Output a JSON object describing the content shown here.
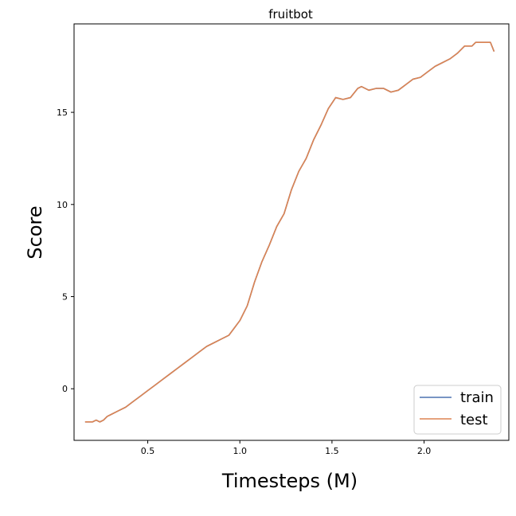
{
  "chart_data": {
    "type": "line",
    "title": "fruitbot",
    "xlabel": "Timesteps (M)",
    "ylabel": "Score",
    "xlim": [
      0.1,
      2.46
    ],
    "ylim": [
      -2.8,
      19.8
    ],
    "xticks": [
      0.5,
      1.0,
      1.5,
      2.0
    ],
    "xtick_labels": [
      "0.5",
      "1.0",
      "1.5",
      "2.0"
    ],
    "yticks": [
      0,
      5,
      10,
      15
    ],
    "ytick_labels": [
      "0",
      "5",
      "10",
      "15"
    ],
    "grid": false,
    "legend_position": "bottom-right",
    "series": [
      {
        "name": "train",
        "color": "#4c72b0",
        "x": [
          0.16,
          0.2,
          0.22,
          0.24,
          0.26,
          0.28,
          0.3,
          0.34,
          0.38,
          0.42,
          0.46,
          0.5,
          0.54,
          0.58,
          0.62,
          0.66,
          0.7,
          0.74,
          0.78,
          0.82,
          0.86,
          0.9,
          0.94,
          0.97,
          1.0,
          1.04,
          1.08,
          1.12,
          1.16,
          1.2,
          1.24,
          1.28,
          1.32,
          1.36,
          1.4,
          1.44,
          1.48,
          1.52,
          1.56,
          1.6,
          1.64,
          1.66,
          1.7,
          1.74,
          1.78,
          1.82,
          1.86,
          1.9,
          1.94,
          1.98,
          2.02,
          2.06,
          2.1,
          2.14,
          2.18,
          2.22,
          2.26,
          2.28,
          2.32,
          2.36,
          2.38
        ],
        "y": [
          -1.8,
          -1.8,
          -1.7,
          -1.8,
          -1.7,
          -1.5,
          -1.4,
          -1.2,
          -1.0,
          -0.7,
          -0.4,
          -0.1,
          0.2,
          0.5,
          0.8,
          1.1,
          1.4,
          1.7,
          2.0,
          2.3,
          2.5,
          2.7,
          2.9,
          3.3,
          3.7,
          4.5,
          5.8,
          6.9,
          7.8,
          8.8,
          9.5,
          10.8,
          11.8,
          12.5,
          13.5,
          14.3,
          15.2,
          15.8,
          15.7,
          15.8,
          16.3,
          16.4,
          16.2,
          16.3,
          16.3,
          16.1,
          16.2,
          16.5,
          16.8,
          16.9,
          17.2,
          17.5,
          17.7,
          17.9,
          18.2,
          18.6,
          18.6,
          18.8,
          18.8,
          18.8,
          18.3
        ]
      },
      {
        "name": "test",
        "color": "#dd8452",
        "x": [
          0.16,
          0.2,
          0.22,
          0.24,
          0.26,
          0.28,
          0.3,
          0.34,
          0.38,
          0.42,
          0.46,
          0.5,
          0.54,
          0.58,
          0.62,
          0.66,
          0.7,
          0.74,
          0.78,
          0.82,
          0.86,
          0.9,
          0.94,
          0.97,
          1.0,
          1.04,
          1.08,
          1.12,
          1.16,
          1.2,
          1.24,
          1.28,
          1.32,
          1.36,
          1.4,
          1.44,
          1.48,
          1.52,
          1.56,
          1.6,
          1.64,
          1.66,
          1.7,
          1.74,
          1.78,
          1.82,
          1.86,
          1.9,
          1.94,
          1.98,
          2.02,
          2.06,
          2.1,
          2.14,
          2.18,
          2.22,
          2.26,
          2.28,
          2.32,
          2.36,
          2.38
        ],
        "y": [
          -1.8,
          -1.8,
          -1.7,
          -1.8,
          -1.7,
          -1.5,
          -1.4,
          -1.2,
          -1.0,
          -0.7,
          -0.4,
          -0.1,
          0.2,
          0.5,
          0.8,
          1.1,
          1.4,
          1.7,
          2.0,
          2.3,
          2.5,
          2.7,
          2.9,
          3.3,
          3.7,
          4.5,
          5.8,
          6.9,
          7.8,
          8.8,
          9.5,
          10.8,
          11.8,
          12.5,
          13.5,
          14.3,
          15.2,
          15.8,
          15.7,
          15.8,
          16.3,
          16.4,
          16.2,
          16.3,
          16.3,
          16.1,
          16.2,
          16.5,
          16.8,
          16.9,
          17.2,
          17.5,
          17.7,
          17.9,
          18.2,
          18.6,
          18.6,
          18.8,
          18.8,
          18.8,
          18.3
        ]
      }
    ]
  }
}
